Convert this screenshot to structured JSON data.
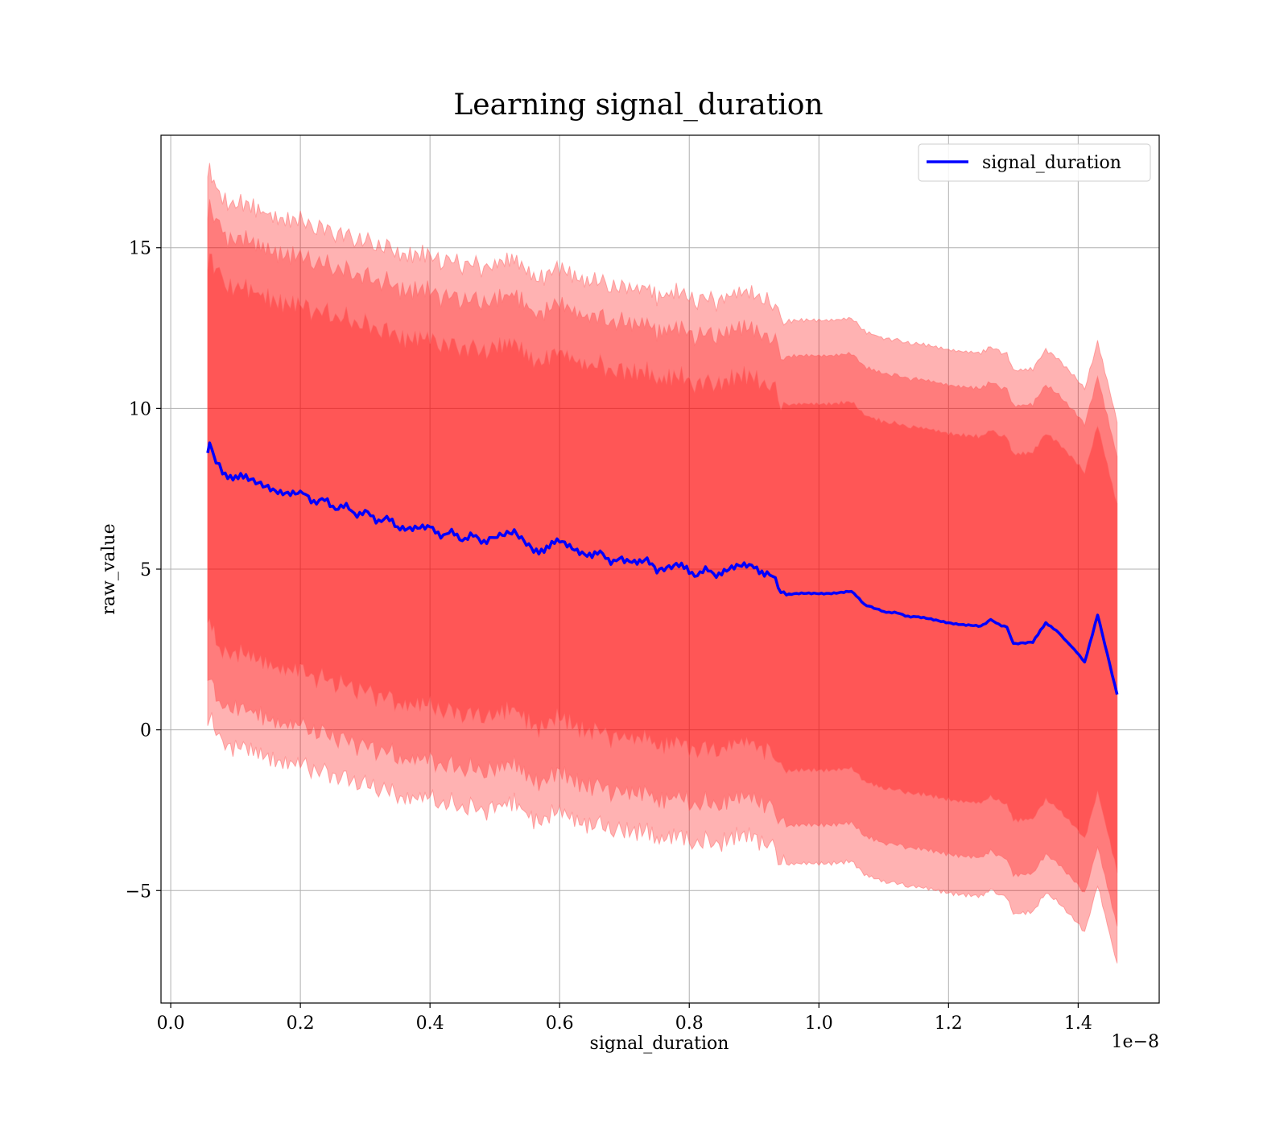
{
  "chart_data": {
    "type": "line",
    "title": "Learning signal_duration",
    "xlabel": "signal_duration",
    "ylabel": "raw_value",
    "x_offset_label": "1e−8",
    "xlim": [
      -0.015,
      1.525
    ],
    "ylim": [
      -8.5,
      18.5
    ],
    "x_ticks": [
      0.0,
      0.2,
      0.4,
      0.6,
      0.8,
      1.0,
      1.2,
      1.4
    ],
    "x_tick_labels": [
      "0.0",
      "0.2",
      "0.4",
      "0.6",
      "0.8",
      "1.0",
      "1.2",
      "1.4"
    ],
    "y_ticks": [
      -5,
      0,
      5,
      10,
      15
    ],
    "y_tick_labels": [
      "−5",
      "0",
      "5",
      "10",
      "15"
    ],
    "grid": true,
    "legend_position": "top-right",
    "colors": {
      "line": "#0000ff",
      "band": "#ff0000",
      "band_edge": "#ff6666"
    },
    "series": [
      {
        "name": "signal_duration",
        "x": [
          0.057,
          0.06,
          0.07,
          0.08,
          0.1,
          0.12,
          0.15,
          0.2,
          0.25,
          0.3,
          0.35,
          0.4,
          0.45,
          0.5,
          0.53,
          0.56,
          0.6,
          0.65,
          0.7,
          0.735,
          0.75,
          0.78,
          0.8,
          0.85,
          0.9,
          0.92,
          0.95,
          1.0,
          1.05,
          1.07,
          1.1,
          1.15,
          1.2,
          1.25,
          1.265,
          1.29,
          1.3,
          1.33,
          1.35,
          1.37,
          1.41,
          1.43,
          1.46
        ],
        "y": [
          8.6,
          8.8,
          8.4,
          8.1,
          7.8,
          7.8,
          7.6,
          7.3,
          7.0,
          6.7,
          6.4,
          6.2,
          6.0,
          5.9,
          6.1,
          5.6,
          5.8,
          5.5,
          5.2,
          5.4,
          5.0,
          5.1,
          4.9,
          4.9,
          5.1,
          4.9,
          4.2,
          4.25,
          4.3,
          3.9,
          3.7,
          3.5,
          3.35,
          3.2,
          3.4,
          3.2,
          2.7,
          2.75,
          3.3,
          3.05,
          2.1,
          3.6,
          1.1
        ]
      }
    ],
    "bands": [
      {
        "level": 1,
        "upper_offset": 5.9,
        "lower_offset": 5.5
      },
      {
        "level": 2,
        "upper_offset": 7.4,
        "lower_offset": 7.2
      },
      {
        "level": 3,
        "upper_offset": 8.5,
        "lower_offset": 8.4
      }
    ]
  }
}
